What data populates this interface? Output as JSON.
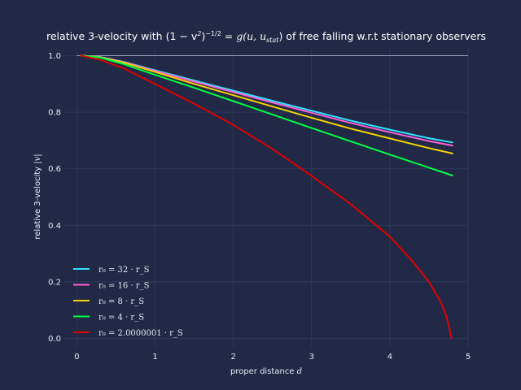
{
  "chart_data": {
    "type": "line",
    "title": {
      "pre": "relative 3-velocity with (1 − v",
      "sup1": "2",
      "mid": ")",
      "sup2": "−1/2",
      "eq": " = g(u, u",
      "sub": "stat",
      "post": ") of free falling w.r.t stationary observers"
    },
    "xlabel": {
      "text": "proper distance ",
      "var": "d"
    },
    "ylabel": {
      "text": "relative 3-velocity ",
      "var": "|v|"
    },
    "xlim": [
      -0.15,
      5.0
    ],
    "ylim": [
      -0.03,
      1.03
    ],
    "xticks": [
      0,
      1,
      2,
      3,
      4,
      5
    ],
    "yticks": [
      0.0,
      0.2,
      0.4,
      0.6,
      0.8,
      1.0
    ],
    "xtick_labels": [
      "0",
      "1",
      "2",
      "3",
      "4",
      "5"
    ],
    "ytick_labels": [
      "0.0",
      "0.2",
      "0.4",
      "0.6",
      "0.8",
      "1.0"
    ],
    "grid": true,
    "reference_line": {
      "y": 1.0,
      "color": "#9aa0b8"
    },
    "legend_position": "lower-left",
    "series": [
      {
        "name": "r₀ = 32 · r_S",
        "color": "#2ee3ff",
        "points": [
          [
            0.05,
            1.0
          ],
          [
            0.3,
            0.995
          ],
          [
            0.6,
            0.978
          ],
          [
            1.0,
            0.948
          ],
          [
            1.5,
            0.912
          ],
          [
            2.0,
            0.876
          ],
          [
            2.5,
            0.84
          ],
          [
            3.0,
            0.805
          ],
          [
            3.5,
            0.77
          ],
          [
            4.0,
            0.738
          ],
          [
            4.5,
            0.708
          ],
          [
            4.8,
            0.693
          ]
        ]
      },
      {
        "name": "r₀ = 16 · r_S",
        "color": "#ff5ed2",
        "points": [
          [
            0.05,
            1.0
          ],
          [
            0.3,
            0.995
          ],
          [
            0.6,
            0.977
          ],
          [
            1.0,
            0.946
          ],
          [
            1.5,
            0.908
          ],
          [
            2.0,
            0.871
          ],
          [
            2.5,
            0.834
          ],
          [
            3.0,
            0.798
          ],
          [
            3.5,
            0.762
          ],
          [
            4.0,
            0.729
          ],
          [
            4.5,
            0.698
          ],
          [
            4.8,
            0.682
          ]
        ]
      },
      {
        "name": "r₀ = 8 · r_S",
        "color": "#f5d300",
        "points": [
          [
            0.05,
            1.0
          ],
          [
            0.3,
            0.994
          ],
          [
            0.6,
            0.975
          ],
          [
            1.0,
            0.942
          ],
          [
            1.5,
            0.9
          ],
          [
            2.0,
            0.86
          ],
          [
            2.5,
            0.82
          ],
          [
            3.0,
            0.78
          ],
          [
            3.5,
            0.742
          ],
          [
            4.0,
            0.707
          ],
          [
            4.5,
            0.673
          ],
          [
            4.8,
            0.654
          ]
        ]
      },
      {
        "name": "r₀ = 4 · r_S",
        "color": "#00ff41",
        "points": [
          [
            0.05,
            1.0
          ],
          [
            0.3,
            0.993
          ],
          [
            0.6,
            0.97
          ],
          [
            1.0,
            0.932
          ],
          [
            1.5,
            0.886
          ],
          [
            2.0,
            0.839
          ],
          [
            2.5,
            0.792
          ],
          [
            3.0,
            0.744
          ],
          [
            3.5,
            0.697
          ],
          [
            4.0,
            0.65
          ],
          [
            4.5,
            0.604
          ],
          [
            4.8,
            0.576
          ]
        ]
      },
      {
        "name": "r₀ = 2.0000001 · r_S",
        "color": "#e10000",
        "points": [
          [
            0.05,
            1.0
          ],
          [
            0.3,
            0.985
          ],
          [
            0.6,
            0.955
          ],
          [
            1.0,
            0.9
          ],
          [
            1.5,
            0.83
          ],
          [
            2.0,
            0.755
          ],
          [
            2.5,
            0.67
          ],
          [
            3.0,
            0.575
          ],
          [
            3.5,
            0.475
          ],
          [
            4.0,
            0.36
          ],
          [
            4.3,
            0.27
          ],
          [
            4.5,
            0.2
          ],
          [
            4.65,
            0.13
          ],
          [
            4.72,
            0.08
          ],
          [
            4.76,
            0.04
          ],
          [
            4.78,
            0.01
          ],
          [
            4.79,
            0.0
          ]
        ]
      }
    ]
  }
}
